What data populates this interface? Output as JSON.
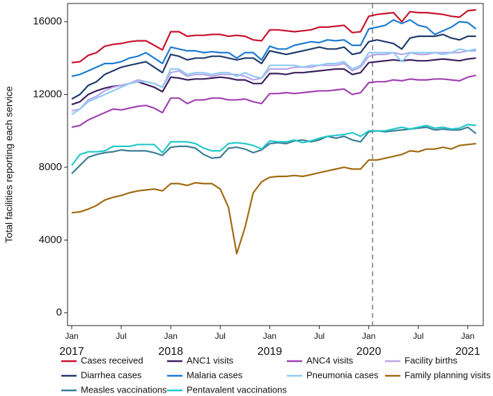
{
  "chart_data": {
    "type": "line",
    "y_label": "Total facilities reporting each service",
    "categories": [
      "Jan",
      null,
      null,
      null,
      null,
      null,
      "Jul",
      null,
      null,
      null,
      null,
      null,
      "Jan",
      null,
      null,
      null,
      null,
      null,
      "Jul",
      null,
      null,
      null,
      null,
      null,
      "Jan",
      null,
      null,
      null,
      null,
      null,
      "Jul",
      null,
      null,
      null,
      null,
      null,
      "Jan",
      null,
      null,
      null,
      null,
      null,
      "Jul",
      null,
      null,
      null,
      null,
      null,
      "Jan",
      null
    ],
    "years": [
      "2017",
      "2018",
      "2019",
      "2020",
      "2021"
    ],
    "ylim": [
      -700,
      17000
    ],
    "yticks": [
      0,
      4000,
      8000,
      12000,
      16000
    ],
    "grid": false,
    "series": [
      {
        "name": "Cases received",
        "color": "#c8102e",
        "values": [
          13750,
          13800,
          14150,
          14300,
          14650,
          14750,
          14800,
          14900,
          14950,
          14950,
          14700,
          14450,
          15450,
          15450,
          15200,
          15250,
          15250,
          15300,
          15300,
          15200,
          15250,
          15200,
          15000,
          14950,
          15550,
          15550,
          15500,
          15450,
          15500,
          15550,
          15700,
          15700,
          15750,
          15800,
          15400,
          15450,
          16300,
          16400,
          16450,
          16500,
          16000,
          16550,
          16500,
          16500,
          16450,
          16400,
          16300,
          16250,
          16600,
          16650
        ]
      },
      {
        "name": "ANC1 visits",
        "color": "#3b1f5e",
        "values": [
          11450,
          11600,
          12000,
          12200,
          12350,
          12450,
          12500,
          12600,
          12700,
          12550,
          12400,
          12150,
          12950,
          12900,
          12800,
          12850,
          12850,
          12900,
          12950,
          12900,
          12800,
          12800,
          12600,
          12600,
          13150,
          13150,
          13100,
          13200,
          13200,
          13250,
          13300,
          13350,
          13400,
          13400,
          13100,
          13200,
          13750,
          13800,
          13850,
          13900,
          13850,
          13900,
          13850,
          13850,
          13900,
          13950,
          13900,
          13850,
          13950,
          14000
        ]
      },
      {
        "name": "ANC4 visits",
        "color": "#a040b0",
        "values": [
          10200,
          10300,
          10600,
          10800,
          11000,
          11200,
          11150,
          11250,
          11350,
          11400,
          11250,
          11000,
          11800,
          11800,
          11500,
          11700,
          11700,
          11800,
          11800,
          11700,
          11700,
          11750,
          11600,
          11500,
          12050,
          12050,
          12100,
          12050,
          12100,
          12150,
          12200,
          12200,
          12250,
          12300,
          12000,
          12100,
          12650,
          12700,
          12700,
          12800,
          12750,
          12850,
          12800,
          12800,
          12850,
          12850,
          12800,
          12750,
          12950,
          13050
        ]
      },
      {
        "name": "Facility births",
        "color": "#b9a4e8",
        "values": [
          11100,
          11200,
          11700,
          11900,
          12200,
          12400,
          12500,
          12600,
          12800,
          12700,
          12600,
          12400,
          13200,
          13300,
          13000,
          13100,
          13100,
          13000,
          13100,
          13100,
          13100,
          13000,
          12800,
          12900,
          13400,
          13400,
          13400,
          13500,
          13500,
          13500,
          13600,
          13600,
          13600,
          13700,
          13300,
          13500,
          14100,
          14200,
          14200,
          14300,
          14200,
          14300,
          14200,
          14200,
          14300,
          14300,
          14300,
          14300,
          14400,
          14400
        ]
      },
      {
        "name": "Diarrhea cases",
        "color": "#1f3a6b",
        "values": [
          11750,
          12000,
          12500,
          12700,
          13100,
          13300,
          13500,
          13600,
          13700,
          13800,
          13500,
          13200,
          14200,
          14100,
          13900,
          14000,
          14000,
          14100,
          14100,
          14000,
          13900,
          14000,
          14000,
          13700,
          14400,
          14300,
          14200,
          14300,
          14400,
          14500,
          14600,
          14500,
          14500,
          14600,
          14200,
          14300,
          14900,
          15000,
          14900,
          14800,
          14500,
          15100,
          15200,
          15200,
          15200,
          15300,
          15100,
          15000,
          15200,
          15200
        ]
      },
      {
        "name": "Malaria cases",
        "color": "#1a7ad4",
        "values": [
          13000,
          13100,
          13300,
          13500,
          13700,
          13700,
          13800,
          14000,
          14100,
          14300,
          14000,
          13700,
          14600,
          14500,
          14400,
          14400,
          14300,
          14350,
          14300,
          14300,
          14000,
          14300,
          14300,
          13900,
          14650,
          14500,
          14500,
          14700,
          14800,
          14900,
          14850,
          15000,
          14950,
          15000,
          14700,
          14700,
          15600,
          15700,
          15800,
          16100,
          15900,
          16100,
          15800,
          15700,
          15300,
          15500,
          15700,
          16000,
          15950,
          15600
        ]
      },
      {
        "name": "Pneumonia cases",
        "color": "#8fcaf5",
        "values": [
          10900,
          11200,
          11600,
          11800,
          12000,
          12200,
          12400,
          12600,
          12700,
          12700,
          12600,
          12400,
          13400,
          13400,
          13100,
          13200,
          13200,
          13100,
          13200,
          13200,
          13000,
          13200,
          13000,
          12900,
          13600,
          13600,
          13600,
          13600,
          13500,
          13600,
          13600,
          13700,
          13700,
          13800,
          13400,
          13600,
          14300,
          14300,
          14300,
          14300,
          13800,
          14300,
          14300,
          14300,
          14300,
          14200,
          14300,
          14500,
          14400,
          14500
        ]
      },
      {
        "name": "Family planning visits",
        "color": "#a0690f",
        "values": [
          5500,
          5550,
          5700,
          5900,
          6200,
          6350,
          6450,
          6600,
          6700,
          6750,
          6800,
          6700,
          7100,
          7100,
          7000,
          7150,
          7100,
          7100,
          6800,
          5800,
          3250,
          4700,
          6600,
          7200,
          7450,
          7500,
          7500,
          7550,
          7500,
          7600,
          7700,
          7800,
          7900,
          8000,
          7900,
          7900,
          8400,
          8400,
          8500,
          8600,
          8700,
          8900,
          8850,
          9000,
          9000,
          9100,
          9000,
          9200,
          9250,
          9300
        ]
      },
      {
        "name": "Measles vaccinations",
        "color": "#3a7d95",
        "values": [
          7650,
          8100,
          8550,
          8700,
          8800,
          8850,
          8950,
          8900,
          8900,
          8900,
          8800,
          8650,
          9100,
          9150,
          9150,
          9050,
          8700,
          8500,
          8550,
          9050,
          9100,
          9000,
          8800,
          8950,
          9300,
          9350,
          9300,
          9450,
          9500,
          9400,
          9500,
          9700,
          9600,
          9700,
          9500,
          9400,
          9950,
          10000,
          9950,
          10000,
          10050,
          10100,
          10150,
          10200,
          10050,
          10100,
          10050,
          10050,
          10200,
          9850
        ]
      },
      {
        "name": "Pentavalent vaccinations",
        "color": "#22c9c9",
        "values": [
          8100,
          8700,
          8850,
          8850,
          8900,
          9150,
          9150,
          9150,
          9250,
          9250,
          9250,
          8800,
          9400,
          9400,
          9400,
          9300,
          9050,
          8900,
          8900,
          9300,
          9350,
          9300,
          9200,
          9000,
          9450,
          9400,
          9400,
          9500,
          9350,
          9450,
          9600,
          9700,
          9750,
          9800,
          9900,
          9700,
          10000,
          10000,
          10000,
          10100,
          10200,
          10100,
          10200,
          10300,
          10150,
          10200,
          10100,
          10150,
          10350,
          10300
        ]
      }
    ]
  }
}
